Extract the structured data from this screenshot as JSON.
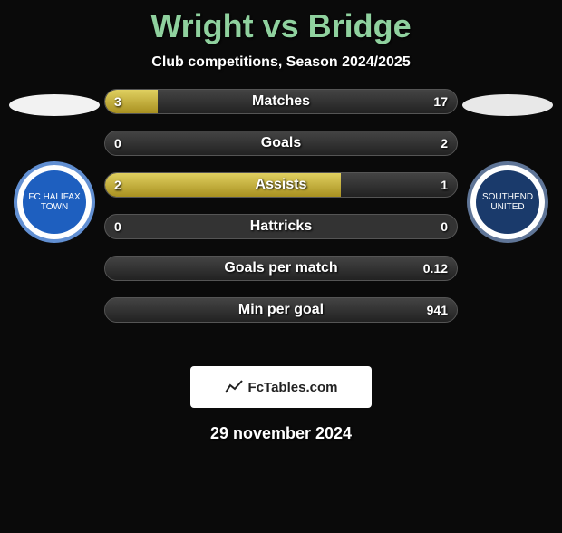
{
  "title_color": "#8fd19e",
  "title": "Wright vs Bridge",
  "subtitle": "Club competitions, Season 2024/2025",
  "left_player": {
    "ellipse_color": "#f2f2f2",
    "crest_bg": "#1e5fbf",
    "crest_ring": "#ffffff",
    "crest_text": "FC HALIFAX TOWN"
  },
  "right_player": {
    "ellipse_color": "#e8e8e8",
    "crest_bg": "#1a3a6b",
    "crest_ring": "#ffffff",
    "crest_text": "SOUTHEND UNITED"
  },
  "bar_fill_color_start": "#e0d060",
  "bar_fill_color_end": "#a89020",
  "bar_track_color": "#333333",
  "bars": [
    {
      "label": "Matches",
      "left": "3",
      "right": "17",
      "left_pct": 15,
      "right_pct": 85
    },
    {
      "label": "Goals",
      "left": "0",
      "right": "2",
      "left_pct": 0,
      "right_pct": 100
    },
    {
      "label": "Assists",
      "left": "2",
      "right": "1",
      "left_pct": 67,
      "right_pct": 33
    },
    {
      "label": "Hattricks",
      "left": "0",
      "right": "0",
      "left_pct": 0,
      "right_pct": 0
    },
    {
      "label": "Goals per match",
      "left": "",
      "right": "0.12",
      "left_pct": 0,
      "right_pct": 100
    },
    {
      "label": "Min per goal",
      "left": "",
      "right": "941",
      "left_pct": 0,
      "right_pct": 100
    }
  ],
  "branding": "FcTables.com",
  "date": "29 november 2024"
}
